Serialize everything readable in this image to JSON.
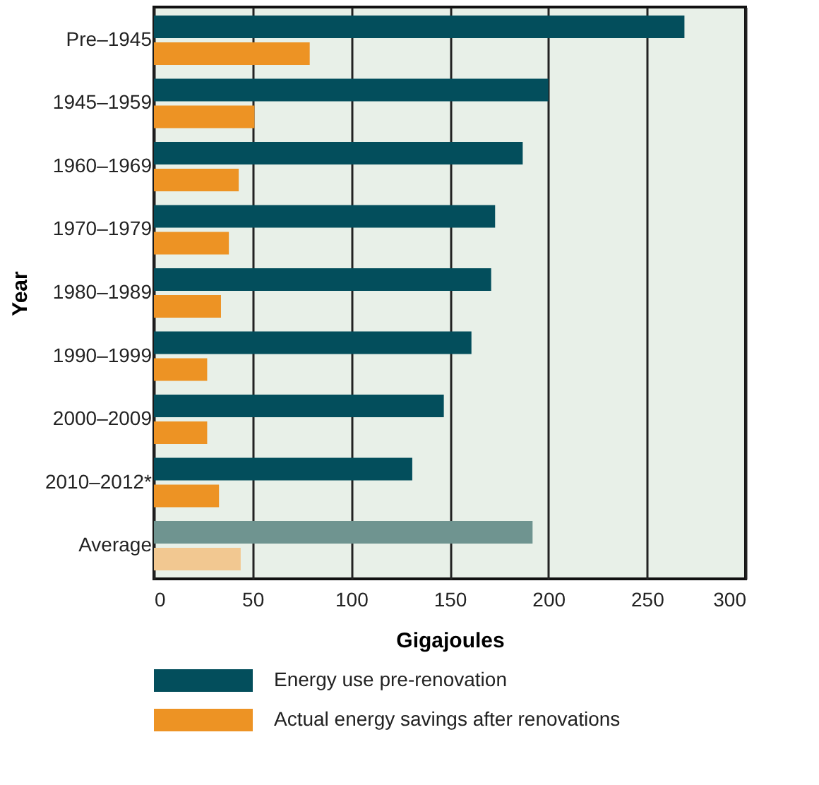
{
  "chart_data": {
    "type": "bar",
    "orientation": "horizontal",
    "xlabel": "Gigajoules",
    "ylabel": "Year",
    "categories": [
      "Pre–1945",
      "1945–1959",
      "1960–1969",
      "1970–1979",
      "1980–1989",
      "1990–1999",
      "2000–2009",
      "2010–2012*",
      "Average"
    ],
    "series": [
      {
        "name": "Energy use pre-renovation",
        "color": "#034e5c",
        "colors": [
          "#034e5c",
          "#034e5c",
          "#034e5c",
          "#034e5c",
          "#034e5c",
          "#034e5c",
          "#034e5c",
          "#034e5c",
          "#6f9490"
        ],
        "values": [
          269,
          200,
          187,
          173,
          171,
          161,
          147,
          131,
          192
        ]
      },
      {
        "name": "Actual energy savings after renovations",
        "color": "#ed9324",
        "colors": [
          "#ed9324",
          "#ed9324",
          "#ed9324",
          "#ed9324",
          "#ed9324",
          "#ed9324",
          "#ed9324",
          "#ed9324",
          "#f2c891"
        ],
        "values": [
          79,
          51,
          43,
          38,
          34,
          27,
          27,
          33,
          44
        ]
      }
    ],
    "xlim": [
      0,
      300
    ],
    "xticks": [
      0,
      50,
      100,
      150,
      200,
      250,
      300
    ],
    "grid": "x",
    "legend": "bottom"
  }
}
